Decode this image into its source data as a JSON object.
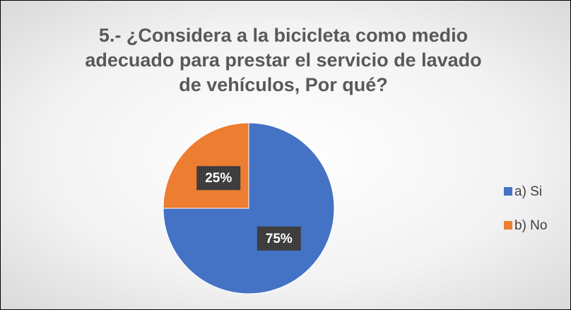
{
  "chart_data": {
    "type": "pie",
    "title": "5.- ¿Considera a la bicicleta como medio adecuado para prestar el servicio de lavado de vehículos, Por qué?",
    "categories": [
      "a) Si",
      "b) No"
    ],
    "values": [
      75,
      25
    ],
    "value_labels": [
      "75%",
      "25%"
    ],
    "colors": [
      "#4472c4",
      "#ed7d31"
    ],
    "legend": "right"
  }
}
